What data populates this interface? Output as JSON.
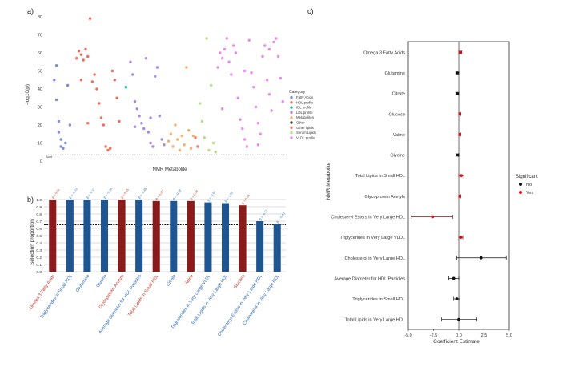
{
  "panel_labels": {
    "a": "a)",
    "b": "b)",
    "c": "c)"
  },
  "chart_data": [
    {
      "type": "scatter",
      "panel": "a)",
      "xlabel": "NMR Metabolite",
      "ylabel": "-log10(p)",
      "ylim": [
        0,
        80
      ],
      "yticks": [
        0,
        10,
        20,
        30,
        40,
        50,
        60,
        70,
        80
      ],
      "threshold_label": "Bonf",
      "threshold": 3.5,
      "legend_title": "Category",
      "legend_placement": "right",
      "categories": [
        {
          "name": "Fatty Acids",
          "color": "#7b8fd8"
        },
        {
          "name": "HDL profile",
          "color": "#ef6f5e"
        },
        {
          "name": "IDL profile",
          "color": "#27b5a6"
        },
        {
          "name": "LDL profile",
          "color": "#a889e4"
        },
        {
          "name": "Metabolites",
          "color": "#f4b06e"
        },
        {
          "name": "Other",
          "color": "#444444"
        },
        {
          "name": "Other lipids",
          "color": "#f27a6c"
        },
        {
          "name": "Serum Lipids",
          "color": "#b7dc8b"
        },
        {
          "name": "VLDL profile",
          "color": "#e98ce8"
        }
      ],
      "points": [
        {
          "c": 0,
          "x": 1,
          "y": 45
        },
        {
          "c": 0,
          "x": 2,
          "y": 53
        },
        {
          "c": 0,
          "x": 3,
          "y": 22
        },
        {
          "c": 0,
          "x": 3,
          "y": 16
        },
        {
          "c": 0,
          "x": 4,
          "y": 12
        },
        {
          "c": 0,
          "x": 4,
          "y": 8
        },
        {
          "c": 0,
          "x": 5,
          "y": 7
        },
        {
          "c": 0,
          "x": 6,
          "y": 10
        },
        {
          "c": 0,
          "x": 7,
          "y": 42
        },
        {
          "c": 0,
          "x": 8,
          "y": 20
        },
        {
          "c": 0,
          "x": 2,
          "y": 34
        },
        {
          "c": 1,
          "x": 11,
          "y": 57
        },
        {
          "c": 1,
          "x": 12,
          "y": 61
        },
        {
          "c": 1,
          "x": 13,
          "y": 59
        },
        {
          "c": 1,
          "x": 14,
          "y": 56
        },
        {
          "c": 1,
          "x": 15,
          "y": 62
        },
        {
          "c": 1,
          "x": 16,
          "y": 58
        },
        {
          "c": 1,
          "x": 17,
          "y": 79
        },
        {
          "c": 1,
          "x": 18,
          "y": 44
        },
        {
          "c": 1,
          "x": 19,
          "y": 48
        },
        {
          "c": 1,
          "x": 20,
          "y": 40
        },
        {
          "c": 1,
          "x": 21,
          "y": 32
        },
        {
          "c": 1,
          "x": 22,
          "y": 24
        },
        {
          "c": 1,
          "x": 23,
          "y": 20
        },
        {
          "c": 1,
          "x": 24,
          "y": 8
        },
        {
          "c": 1,
          "x": 25,
          "y": 6
        },
        {
          "c": 1,
          "x": 26,
          "y": 7
        },
        {
          "c": 1,
          "x": 27,
          "y": 50
        },
        {
          "c": 1,
          "x": 28,
          "y": 45
        },
        {
          "c": 1,
          "x": 29,
          "y": 35
        },
        {
          "c": 1,
          "x": 30,
          "y": 22
        },
        {
          "c": 1,
          "x": 13,
          "y": 45
        },
        {
          "c": 1,
          "x": 16,
          "y": 21
        },
        {
          "c": 2,
          "x": 33,
          "y": 41
        },
        {
          "c": 3,
          "x": 35,
          "y": 55
        },
        {
          "c": 3,
          "x": 36,
          "y": 48
        },
        {
          "c": 3,
          "x": 37,
          "y": 33
        },
        {
          "c": 3,
          "x": 38,
          "y": 29
        },
        {
          "c": 3,
          "x": 39,
          "y": 25
        },
        {
          "c": 3,
          "x": 40,
          "y": 21
        },
        {
          "c": 3,
          "x": 41,
          "y": 18
        },
        {
          "c": 3,
          "x": 42,
          "y": 57
        },
        {
          "c": 3,
          "x": 43,
          "y": 16
        },
        {
          "c": 3,
          "x": 44,
          "y": 10
        },
        {
          "c": 3,
          "x": 45,
          "y": 8
        },
        {
          "c": 3,
          "x": 46,
          "y": 47
        },
        {
          "c": 3,
          "x": 47,
          "y": 52
        },
        {
          "c": 3,
          "x": 48,
          "y": 25
        },
        {
          "c": 3,
          "x": 49,
          "y": 12
        },
        {
          "c": 3,
          "x": 50,
          "y": 9
        },
        {
          "c": 3,
          "x": 37,
          "y": 19
        },
        {
          "c": 3,
          "x": 44,
          "y": 24
        },
        {
          "c": 4,
          "x": 52,
          "y": 11
        },
        {
          "c": 4,
          "x": 53,
          "y": 15
        },
        {
          "c": 4,
          "x": 54,
          "y": 8
        },
        {
          "c": 4,
          "x": 55,
          "y": 20
        },
        {
          "c": 4,
          "x": 56,
          "y": 12
        },
        {
          "c": 4,
          "x": 57,
          "y": 6
        },
        {
          "c": 4,
          "x": 58,
          "y": 14
        },
        {
          "c": 4,
          "x": 59,
          "y": 9
        },
        {
          "c": 4,
          "x": 60,
          "y": 52
        },
        {
          "c": 4,
          "x": 61,
          "y": 17
        },
        {
          "c": 4,
          "x": 62,
          "y": 7
        },
        {
          "c": 4,
          "x": 63,
          "y": 14
        },
        {
          "c": 6,
          "x": 64,
          "y": 13
        },
        {
          "c": 6,
          "x": 65,
          "y": 8
        },
        {
          "c": 7,
          "x": 66,
          "y": 32
        },
        {
          "c": 7,
          "x": 67,
          "y": 22
        },
        {
          "c": 7,
          "x": 68,
          "y": 13
        },
        {
          "c": 7,
          "x": 69,
          "y": 68
        },
        {
          "c": 7,
          "x": 70,
          "y": 6
        },
        {
          "c": 7,
          "x": 71,
          "y": 42
        },
        {
          "c": 7,
          "x": 72,
          "y": 10
        },
        {
          "c": 7,
          "x": 73,
          "y": 5
        },
        {
          "c": 8,
          "x": 74,
          "y": 52
        },
        {
          "c": 8,
          "x": 75,
          "y": 60
        },
        {
          "c": 8,
          "x": 76,
          "y": 57
        },
        {
          "c": 8,
          "x": 77,
          "y": 62
        },
        {
          "c": 8,
          "x": 78,
          "y": 68
        },
        {
          "c": 8,
          "x": 79,
          "y": 55
        },
        {
          "c": 8,
          "x": 80,
          "y": 48
        },
        {
          "c": 8,
          "x": 81,
          "y": 64
        },
        {
          "c": 8,
          "x": 82,
          "y": 60
        },
        {
          "c": 8,
          "x": 83,
          "y": 35
        },
        {
          "c": 8,
          "x": 84,
          "y": 23
        },
        {
          "c": 8,
          "x": 85,
          "y": 18
        },
        {
          "c": 8,
          "x": 86,
          "y": 12
        },
        {
          "c": 8,
          "x": 87,
          "y": 8
        },
        {
          "c": 8,
          "x": 88,
          "y": 67
        },
        {
          "c": 8,
          "x": 89,
          "y": 49
        },
        {
          "c": 8,
          "x": 90,
          "y": 41
        },
        {
          "c": 8,
          "x": 91,
          "y": 30
        },
        {
          "c": 8,
          "x": 92,
          "y": 21
        },
        {
          "c": 8,
          "x": 93,
          "y": 15
        },
        {
          "c": 8,
          "x": 94,
          "y": 58
        },
        {
          "c": 8,
          "x": 95,
          "y": 64
        },
        {
          "c": 8,
          "x": 96,
          "y": 45
        },
        {
          "c": 8,
          "x": 97,
          "y": 37
        },
        {
          "c": 8,
          "x": 98,
          "y": 28
        },
        {
          "c": 8,
          "x": 99,
          "y": 66
        },
        {
          "c": 8,
          "x": 100,
          "y": 68
        },
        {
          "c": 8,
          "x": 101,
          "y": 58
        },
        {
          "c": 8,
          "x": 102,
          "y": 46
        },
        {
          "c": 8,
          "x": 103,
          "y": 33
        },
        {
          "c": 8,
          "x": 76,
          "y": 29
        },
        {
          "c": 8,
          "x": 86,
          "y": 50
        },
        {
          "c": 8,
          "x": 92,
          "y": 9
        },
        {
          "c": 8,
          "x": 97,
          "y": 62
        }
      ],
      "xlim": [
        0,
        104
      ]
    },
    {
      "type": "bar",
      "panel": "b)",
      "ylabel": "Selection proportion",
      "ylim": [
        0,
        1.0
      ],
      "yticks": [
        0.0,
        0.1,
        0.2,
        0.3,
        0.4,
        0.5,
        0.6,
        0.7,
        0.8,
        0.9,
        1.0
      ],
      "threshold": 0.65,
      "colors": {
        "yes": "#8b1a1a",
        "no": "#1f5591",
        "yes_label": "#c0392b",
        "no_label": "#2f6db3"
      },
      "categories": [
        "Omega 3 Fatty Acids",
        "Triglycerides in Small HDL",
        "Glutamine",
        "Glycine",
        "Glycoprotein Acetyls",
        "Average Diameter for HDL Particles",
        "Total Lipids in Small HDL",
        "Citrate",
        "Valine",
        "Triglycerides in Very Large VLDL",
        "Total Lipids in Very Large HDL",
        "Glucose",
        "Cholesteryl Esters in Very Large HDL",
        "Cholesterol in Very Large HDL"
      ],
      "values": [
        1.0,
        1.0,
        1.0,
        1.0,
        1.0,
        1.0,
        0.98,
        0.98,
        0.98,
        0.96,
        0.95,
        0.92,
        0.7,
        0.66
      ],
      "significant": [
        true,
        false,
        false,
        false,
        true,
        false,
        true,
        false,
        true,
        false,
        false,
        true,
        false,
        false
      ],
      "data_labels": [
        "β = 0.06",
        "β = -0.13",
        "β = -0.17",
        "β = -0.18",
        "β = 0.15",
        "β = -0.45",
        "β = 0.20",
        "β = -0.18",
        "β = 0.09",
        "β = -0.01",
        "β = -1.02",
        "β = 0.18",
        "β = -0.11",
        "β = -0.40"
      ]
    },
    {
      "type": "scatter",
      "panel": "c)",
      "xlabel": "Coefficient Estimate",
      "ylabel": "NMR Metabolite",
      "xlim": [
        -5.0,
        5.0
      ],
      "xticks": [
        -5.0,
        -2.5,
        0.0,
        2.5,
        5.0
      ],
      "xtick_labels": [
        "-5.0",
        "-2.5",
        "0.0",
        "2.5",
        "5.0"
      ],
      "legend_title": "Significant",
      "legend_entries": [
        {
          "label": "No",
          "color": "#111111"
        },
        {
          "label": "Yes",
          "color": "#d0161e"
        }
      ],
      "legend_placement": "right",
      "rows": [
        {
          "label": "Omega 3 Fatty Acids",
          "est": 0.15,
          "lo": 0.0,
          "hi": 0.3,
          "sig": true
        },
        {
          "label": "Glutamine",
          "est": -0.15,
          "lo": -0.3,
          "hi": 0.0,
          "sig": false
        },
        {
          "label": "Citrate",
          "est": -0.15,
          "lo": -0.3,
          "hi": 0.0,
          "sig": false
        },
        {
          "label": "Glucose",
          "est": 0.1,
          "lo": 0.0,
          "hi": 0.2,
          "sig": true
        },
        {
          "label": "Valine",
          "est": 0.1,
          "lo": 0.0,
          "hi": 0.2,
          "sig": true
        },
        {
          "label": "Glycine",
          "est": -0.1,
          "lo": -0.25,
          "hi": 0.0,
          "sig": false
        },
        {
          "label": "Total Lipids in Small HDL",
          "est": 0.25,
          "lo": 0.0,
          "hi": 0.5,
          "sig": true
        },
        {
          "label": "Glycoprotein Acetyls",
          "est": 0.1,
          "lo": 0.0,
          "hi": 0.2,
          "sig": true
        },
        {
          "label": "Cholesteryl Esters in Very Large HDL",
          "est": -2.6,
          "lo": -4.7,
          "hi": -0.6,
          "sig": true
        },
        {
          "label": "Triglycerides in Very Large VLDL",
          "est": 0.2,
          "lo": 0.0,
          "hi": 0.4,
          "sig": true
        },
        {
          "label": "Cholesterol in Very Large HDL",
          "est": 2.2,
          "lo": -0.2,
          "hi": 4.7,
          "sig": false
        },
        {
          "label": "Average Diameter for HDL Particles",
          "est": -0.5,
          "lo": -1.0,
          "hi": 0.0,
          "sig": false
        },
        {
          "label": "Triglycerides in Small HDL",
          "est": -0.2,
          "lo": -0.5,
          "hi": 0.1,
          "sig": false
        },
        {
          "label": "Total Lipids in Very Large HDL",
          "est": 0.0,
          "lo": -1.7,
          "hi": 1.8,
          "sig": false
        }
      ]
    }
  ]
}
